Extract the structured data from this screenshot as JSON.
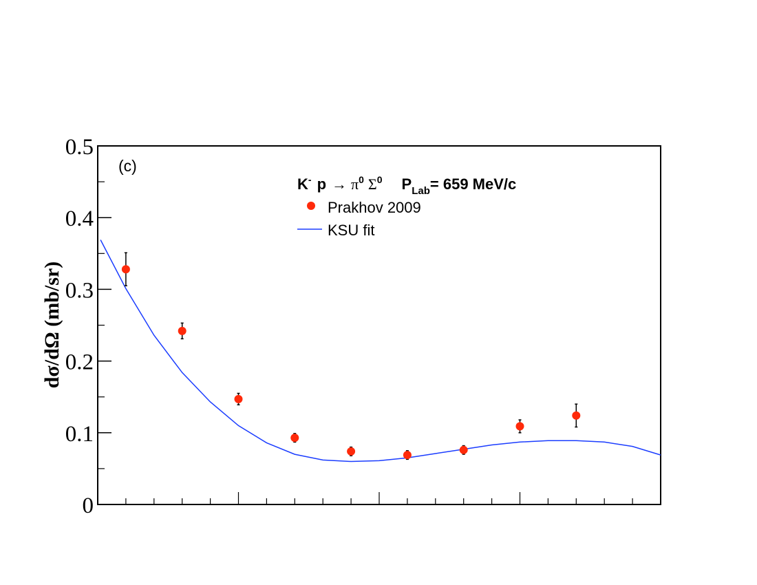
{
  "chart_data": {
    "type": "scatter",
    "panel_label": "(c)",
    "title": {
      "reaction_base": "K",
      "reaction_sup_minus": "-",
      "reaction_p": "p",
      "reaction_arrow": "→",
      "reaction_pi": "π",
      "reaction_pi_sup": "0",
      "reaction_sigma": "Σ",
      "reaction_sigma_sup": "0",
      "plab_p": "P",
      "plab_sub": "Lab",
      "plab_value": "= 659 MeV/c"
    },
    "ylabel": "dσ/dΩ (mb/sr)",
    "xlabel": "",
    "ylim": [
      0,
      0.5
    ],
    "xlim": [
      -1.0,
      1.0
    ],
    "y_ticks": [
      {
        "value": 0,
        "label": "0"
      },
      {
        "value": 0.1,
        "label": "0.1"
      },
      {
        "value": 0.2,
        "label": "0.2"
      },
      {
        "value": 0.3,
        "label": "0.3"
      },
      {
        "value": 0.4,
        "label": "0.4"
      },
      {
        "value": 0.5,
        "label": "0.5"
      }
    ],
    "grid": false,
    "legend_position": "top-center",
    "series": [
      {
        "name": "Prakhov 2009",
        "kind": "points",
        "color": "#ff2a0a",
        "x": [
          -0.9,
          -0.7,
          -0.5,
          -0.3,
          -0.1,
          0.1,
          0.3,
          0.5,
          0.7
        ],
        "y": [
          0.328,
          0.242,
          0.147,
          0.093,
          0.074,
          0.069,
          0.076,
          0.109,
          0.124
        ],
        "err": [
          0.023,
          0.011,
          0.008,
          0.006,
          0.006,
          0.006,
          0.006,
          0.009,
          0.016
        ]
      },
      {
        "name": "KSU fit",
        "kind": "line",
        "color": "#1a3cff",
        "x": [
          -0.99,
          -0.9,
          -0.8,
          -0.7,
          -0.6,
          -0.5,
          -0.4,
          -0.3,
          -0.2,
          -0.1,
          0.0,
          0.1,
          0.2,
          0.3,
          0.4,
          0.5,
          0.6,
          0.7,
          0.8,
          0.9,
          1.0
        ],
        "y": [
          0.369,
          0.301,
          0.236,
          0.184,
          0.143,
          0.11,
          0.086,
          0.07,
          0.062,
          0.06,
          0.061,
          0.065,
          0.071,
          0.077,
          0.083,
          0.087,
          0.089,
          0.089,
          0.087,
          0.081,
          0.069
        ]
      }
    ]
  }
}
